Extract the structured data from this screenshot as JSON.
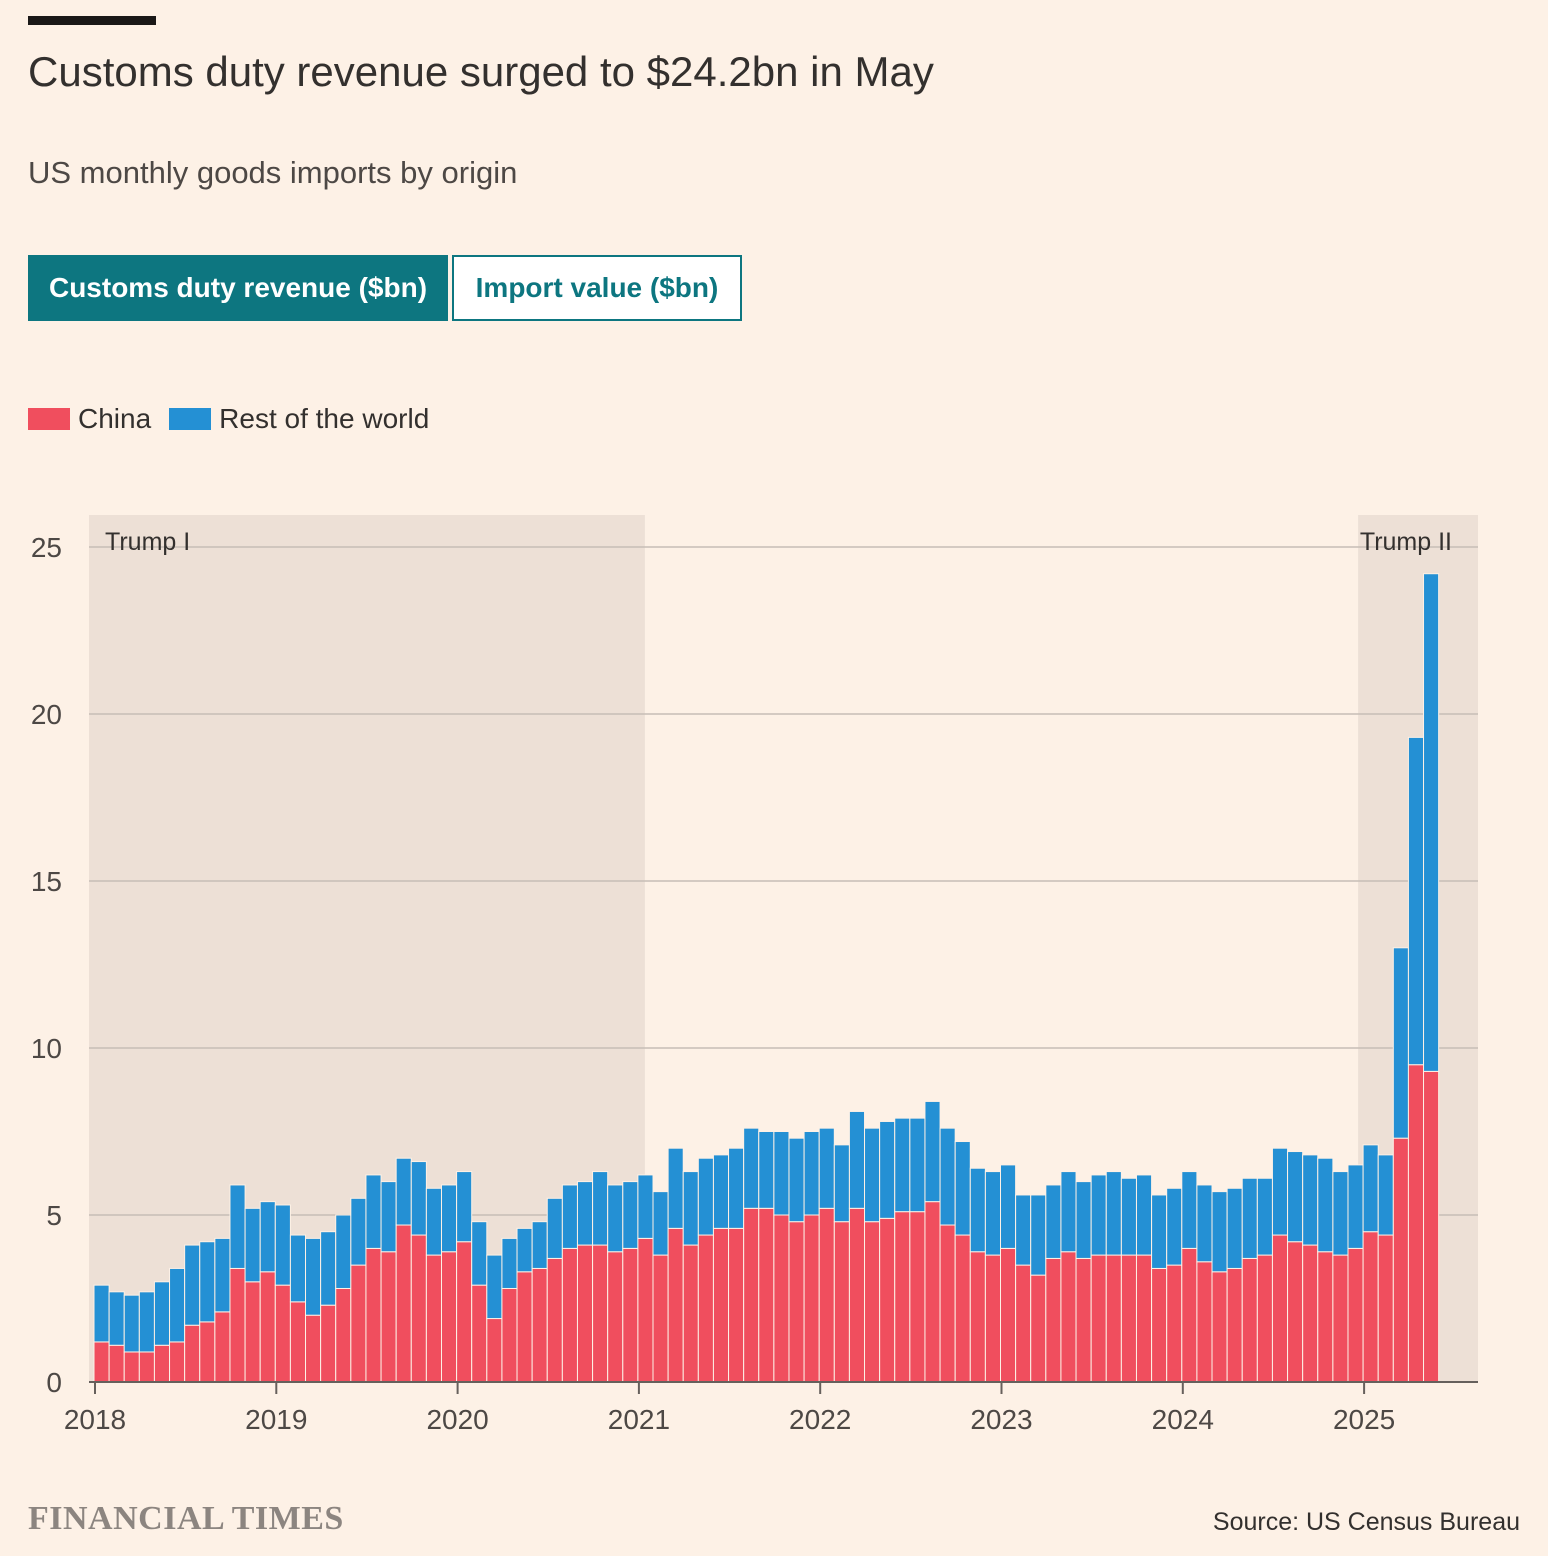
{
  "header": {
    "title": "Customs duty revenue surged to $24.2bn in May",
    "subtitle": "US monthly goods imports by origin"
  },
  "toggle": {
    "active_label": "Customs duty revenue ($bn)",
    "inactive_label": "Import value ($bn)"
  },
  "colors": {
    "china": "#f04e5e",
    "rest": "#2490d4",
    "shade": "#ede0d6",
    "accent": "#0d7680"
  },
  "footer": {
    "brand": "FINANCIAL TIMES",
    "source": "Source: US Census Bureau"
  },
  "chart_data": {
    "type": "bar",
    "stacked": true,
    "start": "2018-01",
    "frequency": "monthly",
    "x_ticks": [
      "2018",
      "2019",
      "2020",
      "2021",
      "2022",
      "2023",
      "2024",
      "2025"
    ],
    "y_ticks": [
      0,
      5,
      10,
      15,
      20,
      25
    ],
    "ylim": [
      0,
      26
    ],
    "grid": true,
    "legend_position": "top-left",
    "annotations": [
      {
        "label": "Trump I",
        "from": "2018-01",
        "to": "2021-01"
      },
      {
        "label": "Trump II",
        "from": "2025-01",
        "to": "2025-06"
      }
    ],
    "series": [
      {
        "name": "China",
        "values": [
          1.2,
          1.1,
          0.9,
          0.9,
          1.1,
          1.2,
          1.7,
          1.8,
          2.1,
          3.4,
          3.0,
          3.3,
          2.9,
          2.4,
          2.0,
          2.3,
          2.8,
          3.5,
          4.0,
          3.9,
          4.7,
          4.4,
          3.8,
          3.9,
          4.2,
          2.9,
          1.9,
          2.8,
          3.3,
          3.4,
          3.7,
          4.0,
          4.1,
          4.1,
          3.9,
          4.0,
          4.3,
          3.8,
          4.6,
          4.1,
          4.4,
          4.6,
          4.6,
          5.2,
          5.2,
          5.0,
          4.8,
          5.0,
          5.2,
          4.8,
          5.2,
          4.8,
          4.9,
          5.1,
          5.1,
          5.4,
          4.7,
          4.4,
          3.9,
          3.8,
          4.0,
          3.5,
          3.2,
          3.7,
          3.9,
          3.7,
          3.8,
          3.8,
          3.8,
          3.8,
          3.4,
          3.5,
          4.0,
          3.6,
          3.3,
          3.4,
          3.7,
          3.8,
          4.4,
          4.2,
          4.1,
          3.9,
          3.8,
          4.0,
          4.5,
          4.4,
          7.3,
          9.5,
          9.3
        ]
      },
      {
        "name": "Rest of the world",
        "values": [
          1.7,
          1.6,
          1.7,
          1.8,
          1.9,
          2.2,
          2.4,
          2.4,
          2.2,
          2.5,
          2.2,
          2.1,
          2.4,
          2.0,
          2.3,
          2.2,
          2.2,
          2.0,
          2.2,
          2.1,
          2.0,
          2.2,
          2.0,
          2.0,
          2.1,
          1.9,
          1.9,
          1.5,
          1.3,
          1.4,
          1.8,
          1.9,
          1.9,
          2.2,
          2.0,
          2.0,
          1.9,
          1.9,
          2.4,
          2.2,
          2.3,
          2.2,
          2.4,
          2.4,
          2.3,
          2.5,
          2.5,
          2.5,
          2.4,
          2.3,
          2.9,
          2.8,
          2.9,
          2.8,
          2.8,
          3.0,
          2.9,
          2.8,
          2.5,
          2.5,
          2.5,
          2.1,
          2.4,
          2.2,
          2.4,
          2.3,
          2.4,
          2.5,
          2.3,
          2.4,
          2.2,
          2.3,
          2.3,
          2.3,
          2.4,
          2.4,
          2.4,
          2.3,
          2.6,
          2.7,
          2.7,
          2.8,
          2.5,
          2.5,
          2.6,
          2.4,
          5.7,
          9.8,
          14.9
        ]
      }
    ]
  }
}
